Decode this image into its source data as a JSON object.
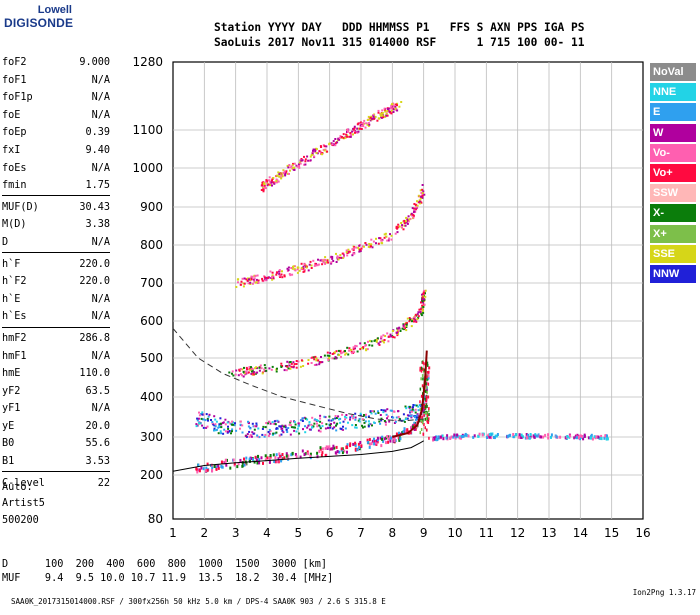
{
  "logo": {
    "line1": "Lowell",
    "line2": "DIGISONDE"
  },
  "header": {
    "line1": "Station YYYY DAY   DDD HHMMSS P1   FFS S AXN PPS IGA PS",
    "line2": "SaoLuis 2017 Nov11 315 014000 RSF      1 715 100 00- 11"
  },
  "params_group1": [
    {
      "name": "foF2",
      "value": "9.000"
    },
    {
      "name": "foF1",
      "value": "N/A"
    },
    {
      "name": "foF1p",
      "value": "N/A"
    },
    {
      "name": "foE",
      "value": "N/A"
    },
    {
      "name": "foEp",
      "value": "0.39"
    },
    {
      "name": "fxI",
      "value": "9.40"
    },
    {
      "name": "foEs",
      "value": "N/A"
    },
    {
      "name": "fmin",
      "value": "1.75"
    }
  ],
  "params_group2": [
    {
      "name": "MUF(D)",
      "value": "30.43"
    },
    {
      "name": "M(D)",
      "value": "3.38"
    },
    {
      "name": "D",
      "value": "N/A"
    }
  ],
  "params_group3": [
    {
      "name": "h`F",
      "value": "220.0"
    },
    {
      "name": "h`F2",
      "value": "220.0"
    },
    {
      "name": "h`E",
      "value": "N/A"
    },
    {
      "name": "h`Es",
      "value": "N/A"
    }
  ],
  "params_group4": [
    {
      "name": "hmF2",
      "value": "286.8"
    },
    {
      "name": "hmF1",
      "value": "N/A"
    },
    {
      "name": "hmE",
      "value": "110.0"
    },
    {
      "name": "yF2",
      "value": "63.5"
    },
    {
      "name": "yF1",
      "value": "N/A"
    },
    {
      "name": "yE",
      "value": "20.0"
    },
    {
      "name": "B0",
      "value": "55.6"
    },
    {
      "name": "B1",
      "value": "3.53"
    }
  ],
  "params_group5": [
    {
      "name": "C-level",
      "value": "22"
    }
  ],
  "auto_block": "Auto:\nArtist5\n500200",
  "legend": [
    {
      "label": "NoVal",
      "color": "#8c8c8c"
    },
    {
      "label": "NNE",
      "color": "#22d3e6"
    },
    {
      "label": "E",
      "color": "#2fa0ef"
    },
    {
      "label": "W",
      "color": "#b0009e"
    },
    {
      "label": "Vo-",
      "color": "#ff5fb0"
    },
    {
      "label": "Vo+",
      "color": "#ff0a40"
    },
    {
      "label": "SSW",
      "color": "#ffb7b7"
    },
    {
      "label": "X-",
      "color": "#0b7d0b"
    },
    {
      "label": "X+",
      "color": "#7dbf4a"
    },
    {
      "label": "SSE",
      "color": "#d6d618"
    },
    {
      "label": "NNW",
      "color": "#2020d8"
    }
  ],
  "dm_table": "D      100  200  400  600  800  1000  1500  3000 [km]\nMUF    9.4  9.5 10.0 10.7 11.9  13.5  18.2  30.4 [MHz]",
  "footer": {
    "left": "SAA0K_2017315014000.RSF / 300fx256h 50 kHz 5.0 km / DPS-4 SAA0K 903 / 2.6 S 315.8 E",
    "right": "Ion2Png 1.3.17"
  },
  "chart_data": {
    "type": "scatter",
    "xlabel": "",
    "ylabel": "",
    "x_ticks": [
      1,
      2,
      3,
      4,
      5,
      6,
      7,
      8,
      9,
      10,
      11,
      12,
      13,
      14,
      15,
      16
    ],
    "y_ticks": [
      80,
      200,
      300,
      400,
      500,
      600,
      700,
      800,
      900,
      1000,
      1100,
      1280
    ],
    "xlim": [
      1,
      16
    ],
    "ylim": [
      80,
      1280
    ],
    "grid": true,
    "traces": [
      {
        "name": "O-trace 1",
        "points": [
          [
            1.7,
            220
          ],
          [
            2.5,
            230
          ],
          [
            3.5,
            240
          ],
          [
            4.5,
            250
          ],
          [
            5.5,
            262
          ],
          [
            6.5,
            275
          ],
          [
            7.5,
            290
          ],
          [
            8.2,
            305
          ],
          [
            8.7,
            330
          ],
          [
            9.0,
            380
          ],
          [
            9.1,
            480
          ]
        ]
      },
      {
        "name": "O-trace 2",
        "points": [
          [
            2.8,
            460
          ],
          [
            3.5,
            470
          ],
          [
            4.5,
            480
          ],
          [
            5.5,
            495
          ],
          [
            6.5,
            520
          ],
          [
            7.5,
            545
          ],
          [
            8.3,
            580
          ],
          [
            8.9,
            630
          ],
          [
            9.0,
            680
          ]
        ]
      },
      {
        "name": "O-trace 3",
        "points": [
          [
            3.0,
            700
          ],
          [
            4.0,
            720
          ],
          [
            5.0,
            740
          ],
          [
            6.0,
            765
          ],
          [
            7.0,
            795
          ],
          [
            8.0,
            830
          ],
          [
            8.6,
            880
          ],
          [
            9.0,
            950
          ]
        ]
      },
      {
        "name": "O-trace 4",
        "points": [
          [
            3.8,
            950
          ],
          [
            4.5,
            990
          ],
          [
            5.5,
            1040
          ],
          [
            6.5,
            1090
          ],
          [
            7.5,
            1140
          ],
          [
            8.2,
            1170
          ]
        ]
      },
      {
        "name": "X-trace",
        "points": [
          [
            9.3,
            300
          ],
          [
            10.0,
            305
          ],
          [
            11.0,
            307
          ],
          [
            12.0,
            306
          ],
          [
            13.0,
            305
          ],
          [
            14.0,
            304
          ],
          [
            14.9,
            302
          ]
        ]
      },
      {
        "name": "Es/E diffuse",
        "points": [
          [
            1.7,
            350
          ],
          [
            2.5,
            330
          ],
          [
            3.5,
            320
          ],
          [
            4.5,
            325
          ],
          [
            5.5,
            335
          ],
          [
            6.5,
            340
          ],
          [
            7.5,
            350
          ],
          [
            8.5,
            360
          ],
          [
            9.0,
            370
          ]
        ]
      }
    ],
    "profile_solid": [
      [
        1.0,
        210
      ],
      [
        2.0,
        225
      ],
      [
        3.0,
        232
      ],
      [
        4.0,
        238
      ],
      [
        5.0,
        244
      ],
      [
        6.0,
        249
      ],
      [
        7.0,
        254
      ],
      [
        8.0,
        262
      ],
      [
        8.6,
        272
      ],
      [
        8.9,
        285
      ],
      [
        9.0,
        290
      ]
    ],
    "profile_dashed": [
      [
        1.0,
        580
      ],
      [
        1.8,
        500
      ],
      [
        2.6,
        460
      ],
      [
        3.5,
        430
      ],
      [
        4.5,
        400
      ],
      [
        5.5,
        380
      ],
      [
        6.5,
        360
      ],
      [
        7.5,
        345
      ],
      [
        8.3,
        340
      ],
      [
        9.0,
        345
      ]
    ],
    "trace_peak_line": [
      [
        8.0,
        300
      ],
      [
        8.5,
        310
      ],
      [
        8.8,
        330
      ],
      [
        8.95,
        370
      ],
      [
        9.05,
        450
      ],
      [
        9.1,
        520
      ]
    ]
  }
}
